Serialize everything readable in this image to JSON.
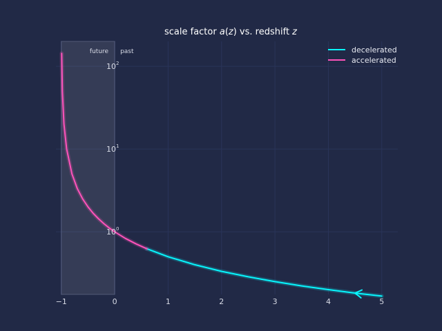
{
  "chart_data": {
    "type": "line",
    "title": "scale factor a(z) vs. redshift z",
    "xlabel": "",
    "ylabel": "",
    "x_ticks": [
      "−1",
      "0",
      "1",
      "2",
      "3",
      "4",
      "5"
    ],
    "x_tick_values": [
      -1,
      0,
      1,
      2,
      3,
      4,
      5
    ],
    "y_ticks": [
      {
        "value": 1,
        "base": "10",
        "exp": "0"
      },
      {
        "value": 10,
        "base": "10",
        "exp": "1"
      },
      {
        "value": 100,
        "base": "10",
        "exp": "2"
      }
    ],
    "xlim": [
      -1.1,
      5.3
    ],
    "ylim": [
      0.175,
      200
    ],
    "y_scale": "log",
    "grid": true,
    "legend_position": "top-right",
    "shaded_region": {
      "x": [
        -1,
        0
      ],
      "labels": {
        "left": "future",
        "right": "past"
      }
    },
    "series": [
      {
        "name": "decelerated",
        "color": "#08f7fe",
        "x": [
          0.6,
          1,
          1.5,
          2,
          2.5,
          3,
          3.5,
          4,
          4.5,
          5
        ],
        "y": [
          0.625,
          0.5,
          0.4,
          0.333,
          0.286,
          0.25,
          0.222,
          0.2,
          0.182,
          0.167
        ],
        "arrow_at_x": 4.5
      },
      {
        "name": "accelerated",
        "color": "#fe53bb",
        "x": [
          -0.993,
          -0.98,
          -0.95,
          -0.9,
          -0.8,
          -0.7,
          -0.6,
          -0.5,
          -0.4,
          -0.3,
          -0.2,
          -0.1,
          0,
          0.2,
          0.4,
          0.6
        ],
        "y": [
          142.9,
          50,
          20,
          10,
          5,
          3.333,
          2.5,
          2,
          1.667,
          1.429,
          1.25,
          1.111,
          1,
          0.833,
          0.714,
          0.625
        ]
      }
    ]
  }
}
